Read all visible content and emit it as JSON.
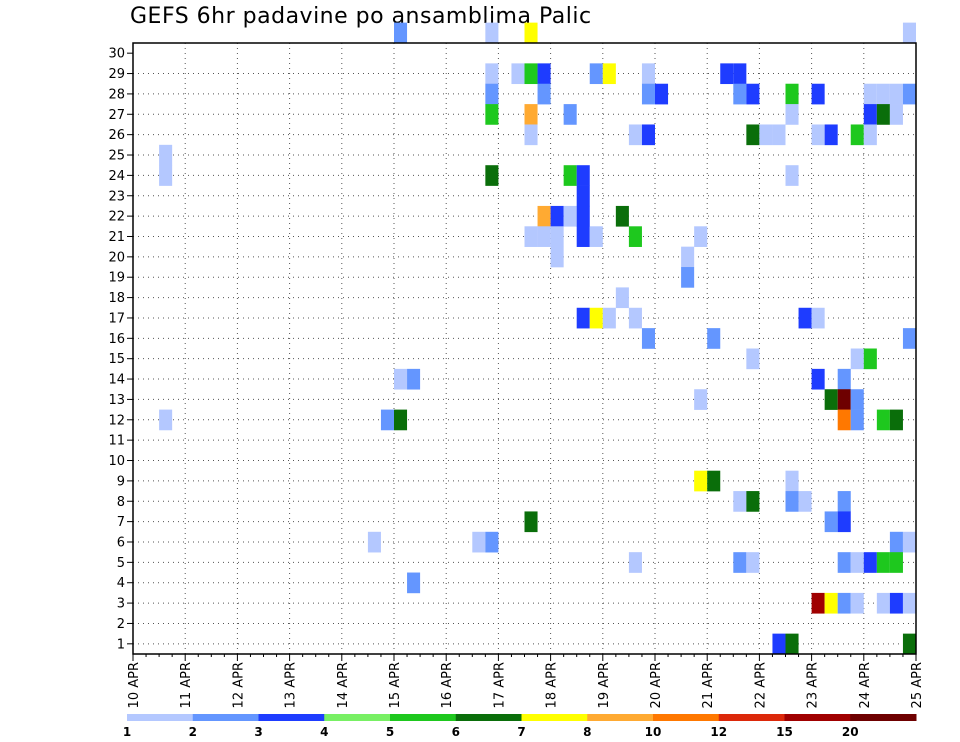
{
  "chart_data": {
    "type": "heatmap",
    "title": "GEFS 6hr padavine po ansamblima Palic",
    "y_ticks": [
      "1",
      "2",
      "3",
      "4",
      "5",
      "6",
      "7",
      "8",
      "9",
      "10",
      "11",
      "12",
      "13",
      "14",
      "15",
      "16",
      "17",
      "18",
      "19",
      "20",
      "21",
      "22",
      "23",
      "24",
      "25",
      "26",
      "27",
      "28",
      "29",
      "30"
    ],
    "x_ticks": [
      "10 APR",
      "11 APR",
      "12 APR",
      "13 APR",
      "14 APR",
      "15 APR",
      "16 APR",
      "17 APR",
      "18 APR",
      "19 APR",
      "20 APR",
      "21 APR",
      "22 APR",
      "23 APR",
      "24 APR",
      "25 APR"
    ],
    "x_range": [
      "10 APR",
      "25 APR"
    ],
    "y_range": [
      0,
      30
    ],
    "grid": true,
    "colorbar": {
      "ticks": [
        "1",
        "2",
        "3",
        "4",
        "5",
        "6",
        "7",
        "8",
        "10",
        "12",
        "15",
        "20"
      ],
      "colors": [
        "#b4c8ff",
        "#6496ff",
        "#1e3cff",
        "#78f064",
        "#1ec81e",
        "#0a6e0a",
        "#ffff00",
        "#ffaa32",
        "#ff7800",
        "#dc280a",
        "#a00000",
        "#6e0000"
      ]
    },
    "cells": [
      {
        "x": "15 APR 00",
        "y": 30,
        "v": 2
      },
      {
        "x": "16 APR 18",
        "y": 30,
        "v": 1
      },
      {
        "x": "17 APR 12",
        "y": 30,
        "v": 7
      },
      {
        "x": "24 APR 18",
        "y": 30,
        "v": 1
      },
      {
        "x": "16 APR 18",
        "y": 28,
        "v": 1
      },
      {
        "x": "17 APR 06",
        "y": 28,
        "v": 1
      },
      {
        "x": "17 APR 12",
        "y": 28,
        "v": 5
      },
      {
        "x": "17 APR 18",
        "y": 28,
        "v": 3
      },
      {
        "x": "18 APR 18",
        "y": 28,
        "v": 2
      },
      {
        "x": "19 APR 00",
        "y": 28,
        "v": 7
      },
      {
        "x": "19 APR 18",
        "y": 28,
        "v": 1
      },
      {
        "x": "21 APR 06",
        "y": 28,
        "v": 3
      },
      {
        "x": "21 APR 12",
        "y": 28,
        "v": 3
      },
      {
        "x": "16 APR 18",
        "y": 27,
        "v": 2
      },
      {
        "x": "17 APR 18",
        "y": 27,
        "v": 2
      },
      {
        "x": "19 APR 18",
        "y": 27,
        "v": 2
      },
      {
        "x": "20 APR 00",
        "y": 27,
        "v": 3
      },
      {
        "x": "21 APR 12",
        "y": 27,
        "v": 2
      },
      {
        "x": "21 APR 18",
        "y": 27,
        "v": 3
      },
      {
        "x": "22 APR 12",
        "y": 27,
        "v": 5
      },
      {
        "x": "23 APR 00",
        "y": 27,
        "v": 3
      },
      {
        "x": "24 APR 00",
        "y": 27,
        "v": 1
      },
      {
        "x": "24 APR 06",
        "y": 27,
        "v": 1
      },
      {
        "x": "24 APR 12",
        "y": 27,
        "v": 1
      },
      {
        "x": "24 APR 18",
        "y": 27,
        "v": 2
      },
      {
        "x": "16 APR 18",
        "y": 26,
        "v": 5
      },
      {
        "x": "17 APR 12",
        "y": 26,
        "v": 8
      },
      {
        "x": "18 APR 06",
        "y": 26,
        "v": 2
      },
      {
        "x": "22 APR 12",
        "y": 26,
        "v": 1
      },
      {
        "x": "24 APR 00",
        "y": 26,
        "v": 3
      },
      {
        "x": "24 APR 06",
        "y": 26,
        "v": 6
      },
      {
        "x": "24 APR 12",
        "y": 26,
        "v": 1
      },
      {
        "x": "17 APR 12",
        "y": 25,
        "v": 1
      },
      {
        "x": "19 APR 12",
        "y": 25,
        "v": 1
      },
      {
        "x": "19 APR 18",
        "y": 25,
        "v": 3
      },
      {
        "x": "21 APR 18",
        "y": 25,
        "v": 6
      },
      {
        "x": "22 APR 00",
        "y": 25,
        "v": 1
      },
      {
        "x": "22 APR 06",
        "y": 25,
        "v": 1
      },
      {
        "x": "23 APR 00",
        "y": 25,
        "v": 1
      },
      {
        "x": "23 APR 06",
        "y": 25,
        "v": 3
      },
      {
        "x": "23 APR 18",
        "y": 25,
        "v": 5
      },
      {
        "x": "24 APR 00",
        "y": 25,
        "v": 1
      },
      {
        "x": "10 APR 12",
        "y": 24,
        "v": 1
      },
      {
        "x": "10 APR 12",
        "y": 23,
        "v": 1
      },
      {
        "x": "16 APR 18",
        "y": 23,
        "v": 6
      },
      {
        "x": "18 APR 06",
        "y": 23,
        "v": 5
      },
      {
        "x": "18 APR 12",
        "y": 23,
        "v": 3
      },
      {
        "x": "22 APR 12",
        "y": 23,
        "v": 1
      },
      {
        "x": "18 APR 12",
        "y": 22,
        "v": 3
      },
      {
        "x": "17 APR 18",
        "y": 21,
        "v": 8
      },
      {
        "x": "18 APR 00",
        "y": 21,
        "v": 3
      },
      {
        "x": "18 APR 06",
        "y": 21,
        "v": 1
      },
      {
        "x": "18 APR 12",
        "y": 21,
        "v": 3
      },
      {
        "x": "19 APR 06",
        "y": 21,
        "v": 6
      },
      {
        "x": "17 APR 12",
        "y": 20,
        "v": 1
      },
      {
        "x": "17 APR 18",
        "y": 20,
        "v": 1
      },
      {
        "x": "18 APR 00",
        "y": 20,
        "v": 1
      },
      {
        "x": "18 APR 12",
        "y": 20,
        "v": 3
      },
      {
        "x": "18 APR 18",
        "y": 20,
        "v": 1
      },
      {
        "x": "19 APR 12",
        "y": 20,
        "v": 5
      },
      {
        "x": "20 APR 18",
        "y": 20,
        "v": 1
      },
      {
        "x": "18 APR 00",
        "y": 19,
        "v": 1
      },
      {
        "x": "20 APR 12",
        "y": 19,
        "v": 1
      },
      {
        "x": "20 APR 12",
        "y": 18,
        "v": 2
      },
      {
        "x": "19 APR 06",
        "y": 17,
        "v": 1
      },
      {
        "x": "18 APR 12",
        "y": 16,
        "v": 3
      },
      {
        "x": "18 APR 18",
        "y": 16,
        "v": 7
      },
      {
        "x": "19 APR 00",
        "y": 16,
        "v": 1
      },
      {
        "x": "19 APR 12",
        "y": 16,
        "v": 1
      },
      {
        "x": "22 APR 18",
        "y": 16,
        "v": 3
      },
      {
        "x": "23 APR 00",
        "y": 16,
        "v": 1
      },
      {
        "x": "19 APR 18",
        "y": 15,
        "v": 2
      },
      {
        "x": "21 APR 00",
        "y": 15,
        "v": 2
      },
      {
        "x": "24 APR 18",
        "y": 15,
        "v": 2
      },
      {
        "x": "21 APR 18",
        "y": 14,
        "v": 1
      },
      {
        "x": "23 APR 18",
        "y": 14,
        "v": 1
      },
      {
        "x": "24 APR 00",
        "y": 14,
        "v": 5
      },
      {
        "x": "15 APR 00",
        "y": 13,
        "v": 1
      },
      {
        "x": "15 APR 06",
        "y": 13,
        "v": 2
      },
      {
        "x": "23 APR 00",
        "y": 13,
        "v": 3
      },
      {
        "x": "23 APR 12",
        "y": 13,
        "v": 2
      },
      {
        "x": "20 APR 18",
        "y": 12,
        "v": 1
      },
      {
        "x": "23 APR 06",
        "y": 12,
        "v": 6
      },
      {
        "x": "23 APR 12",
        "y": 12,
        "v": 20
      },
      {
        "x": "23 APR 18",
        "y": 12,
        "v": 2
      },
      {
        "x": "10 APR 12",
        "y": 11,
        "v": 1
      },
      {
        "x": "14 APR 18",
        "y": 11,
        "v": 2
      },
      {
        "x": "15 APR 00",
        "y": 11,
        "v": 6
      },
      {
        "x": "23 APR 12",
        "y": 11,
        "v": 10
      },
      {
        "x": "23 APR 18",
        "y": 11,
        "v": 2
      },
      {
        "x": "24 APR 06",
        "y": 11,
        "v": 5
      },
      {
        "x": "24 APR 12",
        "y": 11,
        "v": 6
      },
      {
        "x": "20 APR 18",
        "y": 8,
        "v": 7
      },
      {
        "x": "21 APR 00",
        "y": 8,
        "v": 6
      },
      {
        "x": "22 APR 12",
        "y": 8,
        "v": 1
      },
      {
        "x": "21 APR 12",
        "y": 7,
        "v": 1
      },
      {
        "x": "21 APR 18",
        "y": 7,
        "v": 6
      },
      {
        "x": "22 APR 12",
        "y": 7,
        "v": 2
      },
      {
        "x": "22 APR 18",
        "y": 7,
        "v": 1
      },
      {
        "x": "23 APR 12",
        "y": 7,
        "v": 2
      },
      {
        "x": "17 APR 12",
        "y": 6,
        "v": 6
      },
      {
        "x": "23 APR 06",
        "y": 6,
        "v": 2
      },
      {
        "x": "23 APR 12",
        "y": 6,
        "v": 3
      },
      {
        "x": "14 APR 12",
        "y": 5,
        "v": 1
      },
      {
        "x": "16 APR 12",
        "y": 5,
        "v": 1
      },
      {
        "x": "16 APR 18",
        "y": 5,
        "v": 2
      },
      {
        "x": "24 APR 12",
        "y": 5,
        "v": 2
      },
      {
        "x": "24 APR 18",
        "y": 5,
        "v": 1
      },
      {
        "x": "19 APR 12",
        "y": 4,
        "v": 1
      },
      {
        "x": "21 APR 12",
        "y": 4,
        "v": 2
      },
      {
        "x": "21 APR 18",
        "y": 4,
        "v": 1
      },
      {
        "x": "23 APR 12",
        "y": 4,
        "v": 2
      },
      {
        "x": "23 APR 18",
        "y": 4,
        "v": 1
      },
      {
        "x": "24 APR 00",
        "y": 4,
        "v": 3
      },
      {
        "x": "24 APR 06",
        "y": 4,
        "v": 5
      },
      {
        "x": "24 APR 12",
        "y": 4,
        "v": 5
      },
      {
        "x": "15 APR 06",
        "y": 3,
        "v": 2
      },
      {
        "x": "23 APR 00",
        "y": 2,
        "v": 15
      },
      {
        "x": "23 APR 06",
        "y": 2,
        "v": 7
      },
      {
        "x": "23 APR 12",
        "y": 2,
        "v": 2
      },
      {
        "x": "23 APR 18",
        "y": 2,
        "v": 1
      },
      {
        "x": "24 APR 06",
        "y": 2,
        "v": 1
      },
      {
        "x": "24 APR 12",
        "y": 2,
        "v": 3
      },
      {
        "x": "24 APR 18",
        "y": 2,
        "v": 1
      },
      {
        "x": "22 APR 06",
        "y": 0,
        "v": 3
      },
      {
        "x": "22 APR 12",
        "y": 0,
        "v": 6
      },
      {
        "x": "24 APR 18",
        "y": 0,
        "v": 6
      }
    ]
  }
}
